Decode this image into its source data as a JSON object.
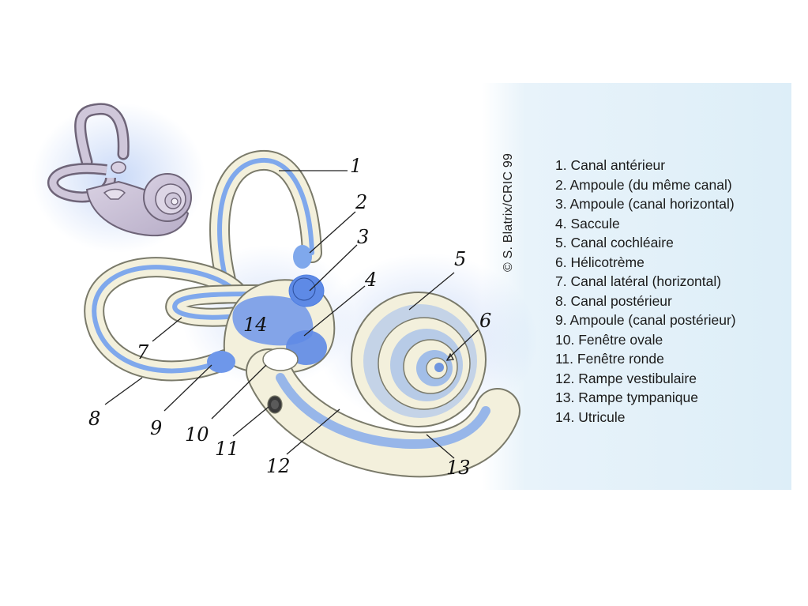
{
  "copyright": "© S. Blatrix/CRIC 99",
  "legend": [
    "1. Canal antérieur",
    "2. Ampoule (du même canal)",
    "3. Ampoule (canal horizontal)",
    "4. Saccule",
    "5. Canal cochléaire",
    "6. Hélicotrème",
    "7. Canal latéral (horizontal)",
    "8. Canal postérieur",
    "9. Ampoule (canal postérieur)",
    "10. Fenêtre ovale",
    "11. Fenêtre ronde",
    "12. Rampe vestibulaire",
    "13. Rampe tympanique",
    "14. Utricule"
  ],
  "labels": [
    "1",
    "2",
    "3",
    "4",
    "5",
    "6",
    "7",
    "8",
    "9",
    "10",
    "11",
    "12",
    "13",
    "14"
  ],
  "colors": {
    "bone": "#f3f0dc",
    "bone_outline": "#7a7a6a",
    "fluid": "#7fa8ec",
    "fluid_dark": "#4f7fe0",
    "inset_body": "#c9c1d6",
    "panel": "#e3f0f9"
  }
}
